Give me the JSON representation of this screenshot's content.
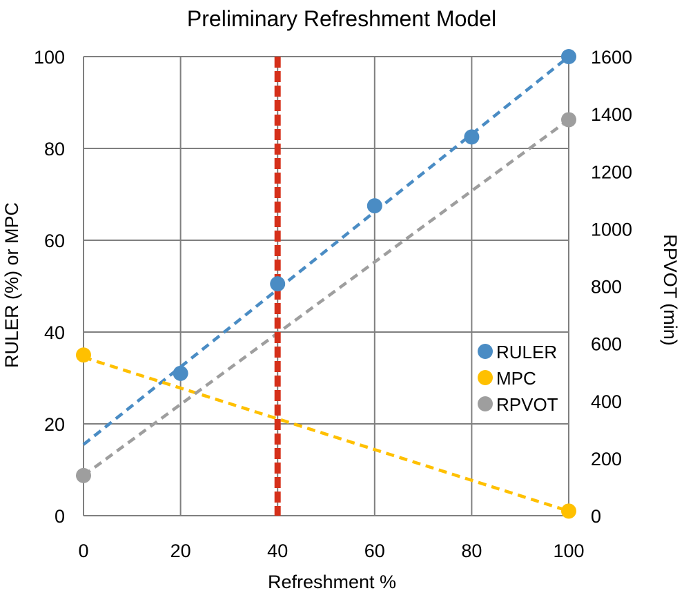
{
  "chart_data": {
    "type": "scatter",
    "title": "Preliminary Refreshment Model",
    "xlabel": "Refreshment %",
    "ylabel_left": "RULER (%) or MPC",
    "ylabel_right": "RPVOT (min)",
    "xlim": [
      0,
      100
    ],
    "ylim_left": [
      0,
      100
    ],
    "ylim_right": [
      0,
      1600
    ],
    "x_ticks": [
      "0",
      "20",
      "40",
      "60",
      "80",
      "100"
    ],
    "y_ticks_left": [
      "0",
      "20",
      "40",
      "60",
      "80",
      "100"
    ],
    "y_ticks_right": [
      "0",
      "200",
      "400",
      "600",
      "800",
      "1000",
      "1200",
      "1400",
      "1600"
    ],
    "grid": true,
    "legend_position": "right",
    "vertical_line": {
      "x": 40,
      "color": "#d5301a",
      "style": "dashed"
    },
    "series": [
      {
        "name": "RULER",
        "axis": "left",
        "color": "#4a8cc4",
        "points": [
          [
            0,
            null
          ],
          [
            20,
            31
          ],
          [
            40,
            50.5
          ],
          [
            60,
            67.5
          ],
          [
            80,
            82.5
          ],
          [
            100,
            100
          ]
        ],
        "trend": [
          [
            0,
            15.5
          ],
          [
            100,
            100
          ]
        ]
      },
      {
        "name": "MPC",
        "axis": "left",
        "color": "#ffc000",
        "points": [
          [
            0,
            35
          ],
          [
            100,
            1
          ]
        ],
        "trend": [
          [
            0,
            34.5
          ],
          [
            100,
            1
          ]
        ]
      },
      {
        "name": "RPVOT",
        "axis": "right",
        "color": "#9e9e9e",
        "points": [
          [
            0,
            140
          ],
          [
            100,
            1380
          ]
        ],
        "trend": [
          [
            0,
            140
          ],
          [
            100,
            1380
          ]
        ]
      }
    ]
  }
}
